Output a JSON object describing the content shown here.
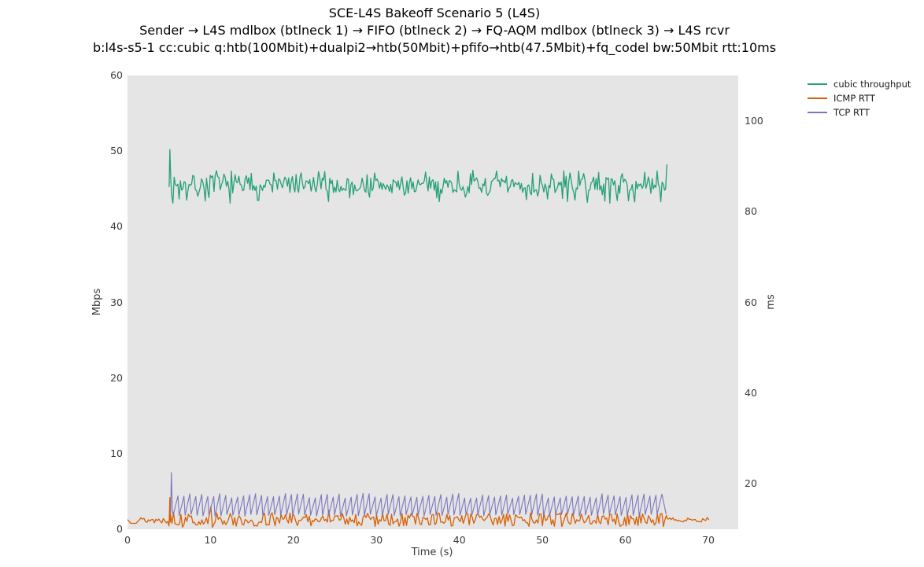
{
  "figure": {
    "title": "SCE-L4S Bakeoff Scenario 5 (L4S)",
    "subtitle_topology": "Sender → L4S mdlbox (btlneck 1) → FIFO (btlneck 2) → FQ-AQM mdlbox (btlneck 3) → L4S rcvr",
    "subtitle_params": "b:l4s-s5-1 cc:cubic q:htb(100Mbit)+dualpi2→htb(50Mbit)+pfifo→htb(47.5Mbit)+fq_codel bw:50Mbit rtt:10ms"
  },
  "chart_data": {
    "type": "line",
    "title": "SCE-L4S Bakeoff Scenario 5 (L4S)",
    "subtitle_lines": [
      "Sender → L4S mdlbox (btlneck 1) → FIFO (btlneck 2) → FQ-AQM mdlbox (btlneck 3) → L4S rcvr",
      "b:l4s-s5-1 cc:cubic q:htb(100Mbit)+dualpi2→htb(50Mbit)+pfifo→htb(47.5Mbit)+fq_codel bw:50Mbit rtt:10ms"
    ],
    "xlabel": "Time (s)",
    "ylabel_left": "Mbps",
    "ylabel_right": "ms",
    "xlim": [
      0,
      73.6
    ],
    "xticks": [
      0,
      10,
      20,
      30,
      40,
      50,
      60,
      70
    ],
    "ylim_left": [
      0,
      60
    ],
    "yticks_left": [
      0,
      10,
      20,
      30,
      40,
      50,
      60
    ],
    "ylim_right": [
      10,
      110
    ],
    "yticks_right": [
      20,
      40,
      60,
      80,
      100
    ],
    "grid": false,
    "plot_background": "#e5e5e5",
    "figure_background": "#ffffff",
    "legend_position": "outside top-right",
    "series": [
      {
        "name": "cubic throughput",
        "axis": "left",
        "unit": "Mbps",
        "color": "#23a078",
        "line_width": 1.3,
        "t_start": 5.0,
        "t_end": 65.0,
        "summary": {
          "initial_spike_mbps": 50,
          "steady_mean_mbps": 45.5,
          "oscillation_range_mbps": [
            44,
            47
          ],
          "final_spike_mbps": 48
        },
        "synth": {
          "kind": "noisy_flat",
          "dt": 0.15,
          "base": 45.5,
          "noise": 1.1,
          "dip_p": 0.2,
          "dip": 1.3,
          "bump_p": 0.18,
          "bump": 0.9,
          "start_points": [
            [
              5.02,
              45.3
            ],
            [
              5.1,
              50.2
            ],
            [
              5.22,
              46.3
            ],
            [
              5.32,
              44.2
            ]
          ],
          "end_points": [
            [
              64.85,
              45.0
            ],
            [
              65.0,
              48.2
            ]
          ],
          "seed": 7
        }
      },
      {
        "name": "ICMP RTT",
        "axis": "right",
        "unit": "ms",
        "color": "#d95f02",
        "line_width": 1.3,
        "t_start": 0.0,
        "t_end": 70.0,
        "summary": {
          "idle_baseline_ms": 12,
          "loaded_range_ms": [
            10.5,
            14.5
          ],
          "spike_at_s": 5.1,
          "spike_ms": 17,
          "calm_after_s": 65
        },
        "synth": {
          "kind": "noisy_flat_segments",
          "dt": 0.18,
          "floor": 10.45,
          "segments": [
            {
              "t0": 0.0,
              "t1": 5.0,
              "base": 12.0,
              "noise": 0.75
            },
            {
              "t0": 5.0,
              "t1": 65.0,
              "base": 12.1,
              "noise": 1.5,
              "bump_p": 0.06,
              "bump": 2.0,
              "dip_p": 0.06,
              "dip": 1.0
            },
            {
              "t0": 65.0,
              "t1": 70.1,
              "base": 12.0,
              "noise": 0.6
            }
          ],
          "spike_points": [
            [
              5.04,
              12.4
            ],
            [
              5.1,
              17.0
            ],
            [
              5.16,
              11.6
            ]
          ],
          "seed": 13
        }
      },
      {
        "name": "TCP RTT",
        "axis": "right",
        "unit": "ms",
        "color": "#7c76bd",
        "line_width": 1.1,
        "t_start": 5.2,
        "t_end": 65.0,
        "summary": {
          "pattern": "sawtooth",
          "period_s": 0.72,
          "min_ms": 13,
          "max_ms": 17.5,
          "initial_spike_ms": 22.5
        },
        "synth": {
          "kind": "sawtooth",
          "period": 0.72,
          "rise_frac": 0.8,
          "min": 13.1,
          "max": 17.4,
          "min_jitter": 0.5,
          "peak_jitter": 1.1,
          "start_spike": [
            [
              5.2,
              13.6
            ],
            [
              5.28,
              22.5
            ],
            [
              5.42,
              13.9
            ]
          ],
          "teeth_start": 5.5,
          "teeth_end": 64.9,
          "seed": 21
        }
      }
    ]
  }
}
